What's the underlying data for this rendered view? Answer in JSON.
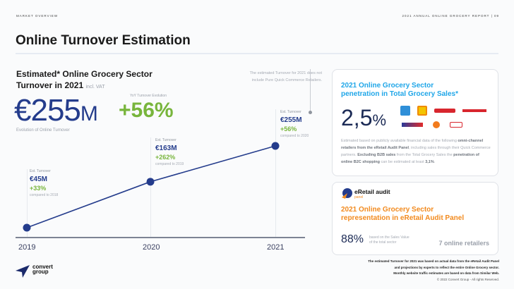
{
  "header": {
    "section": "MARKET OVERVIEW",
    "report": "2021 ANNUAL ONLINE GROCERY REPORT  |  09",
    "title": "Online Turnover Estimation"
  },
  "kpi": {
    "heading_line1": "Estimated* Online Grocery Sector",
    "heading_line2": "Turnover in 2021",
    "vat": "incl. VAT",
    "value": "€255",
    "unit": "M",
    "yoy_label": "YoY Turnover Evolution",
    "yoy_value": "+56%",
    "evolution_label": "Evolution of Online Turnover"
  },
  "note": {
    "line1": "The estimated Turnover for 2021 does not",
    "line2": "include Pure Quick Commerce Retailers."
  },
  "chart_data": {
    "type": "line",
    "title": "Evolution of Online Turnover",
    "x": [
      "2019",
      "2020",
      "2021"
    ],
    "series": [
      {
        "name": "Est. Turnover (€M)",
        "values": [
          45,
          163,
          255
        ]
      }
    ],
    "labels": [
      {
        "title": "Est. Turnover",
        "value": "€45M",
        "change": "+33%",
        "compare": "compared to 2018"
      },
      {
        "title": "Est. Turnover",
        "value": "€163M",
        "change": "+262%",
        "compare": "compared to 2019"
      },
      {
        "title": "Est. Turnover",
        "value": "€255M",
        "change": "+56%",
        "compare": "compared to 2020"
      }
    ],
    "color": "#243c8c"
  },
  "logo": {
    "line1": "convert",
    "line2": "group"
  },
  "card1": {
    "title_line1": "2021 Online Grocery Sector",
    "title_line2": "penetration in Total Grocery Sales*",
    "value": "2,5",
    "unit": "%",
    "retailers": [
      "AB",
      "Bazaar",
      "Kritikos",
      "Masoutis",
      "My market",
      "Sklavenitis",
      "Xalkiadakis"
    ],
    "desc_1": "Estimated based on publicly available financial data of the following ",
    "desc_b1": "omni-channel retailers from the eRetail Audit Panel",
    "desc_2": ", including sales through their Quick Commerce partners. ",
    "desc_b2": "Excluding B2B sales",
    "desc_3": " from the Total Grocery Sales the ",
    "desc_b3": "penetration of online B2C shopping",
    "desc_4": " can be estimated at least ",
    "desc_b4": "3,1%",
    "desc_5": "."
  },
  "card2": {
    "brand": "eRetail audit",
    "brand_sub": "panel",
    "title_line1": "2021 Online Grocery Sector",
    "title_line2": "representation in eRetail Audit Panel",
    "value": "88%",
    "value_note_1": "based on the Sales Value",
    "value_note_2": "of the total sector",
    "retailers": "7 online retailers"
  },
  "footnote": {
    "l1": "The estimated Turnover for 2021 was based on actual data from the eRetail Audit Panel",
    "l2": "and projections by experts to reflect the entire Online Grocery sector.",
    "l3": "Monthly website traffic estimates are based on data from Similar Web.",
    "copyright": "© 2022 Convert Group - All rights Reserved."
  }
}
